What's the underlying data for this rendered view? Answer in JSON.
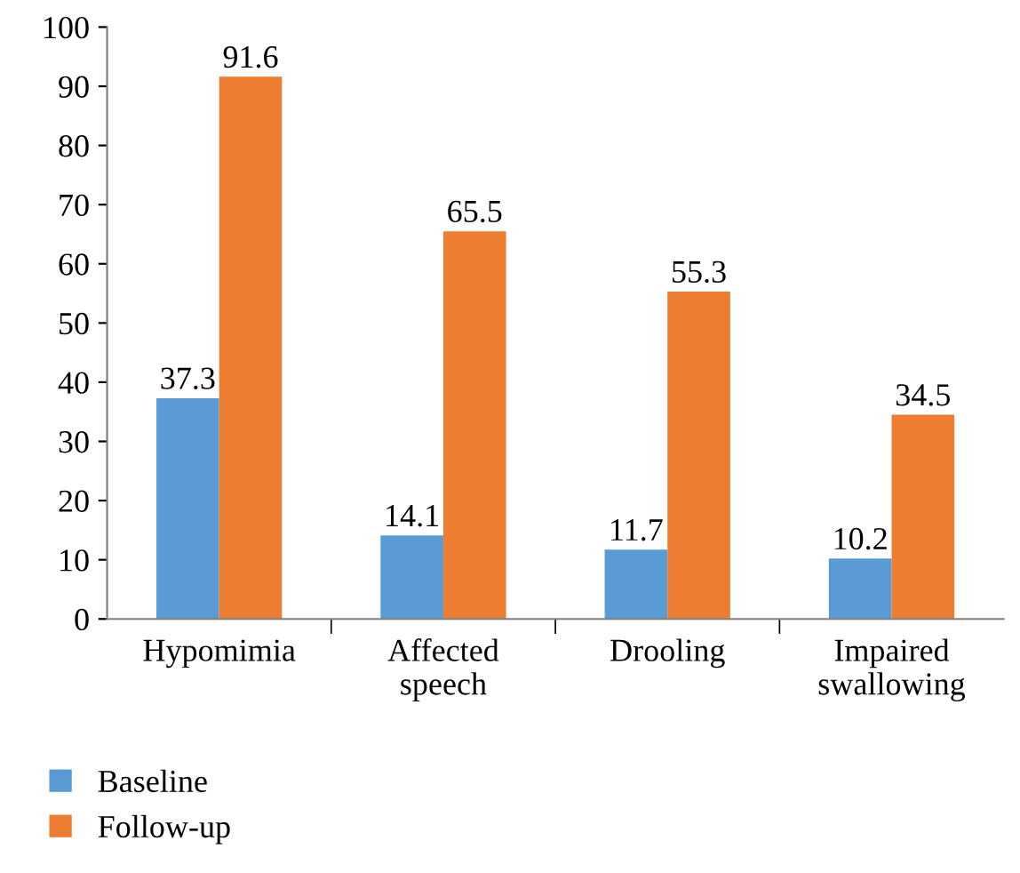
{
  "chart_data": {
    "type": "bar",
    "categories": [
      "Hypomimia",
      "Affected\nspeech",
      "Drooling",
      "Impaired\nswallowing"
    ],
    "series": [
      {
        "name": "Baseline",
        "color": "#5b9bd5",
        "values": [
          37.3,
          14.1,
          11.7,
          10.2
        ]
      },
      {
        "name": "Follow-up",
        "color": "#ed7d31",
        "values": [
          91.6,
          65.5,
          55.3,
          34.5
        ]
      }
    ],
    "ylim": [
      0,
      100
    ],
    "yticks": [
      0,
      10,
      20,
      30,
      40,
      50,
      60,
      70,
      80,
      90,
      100
    ],
    "data_labels": true,
    "grid": false,
    "legend": "bottom left"
  }
}
